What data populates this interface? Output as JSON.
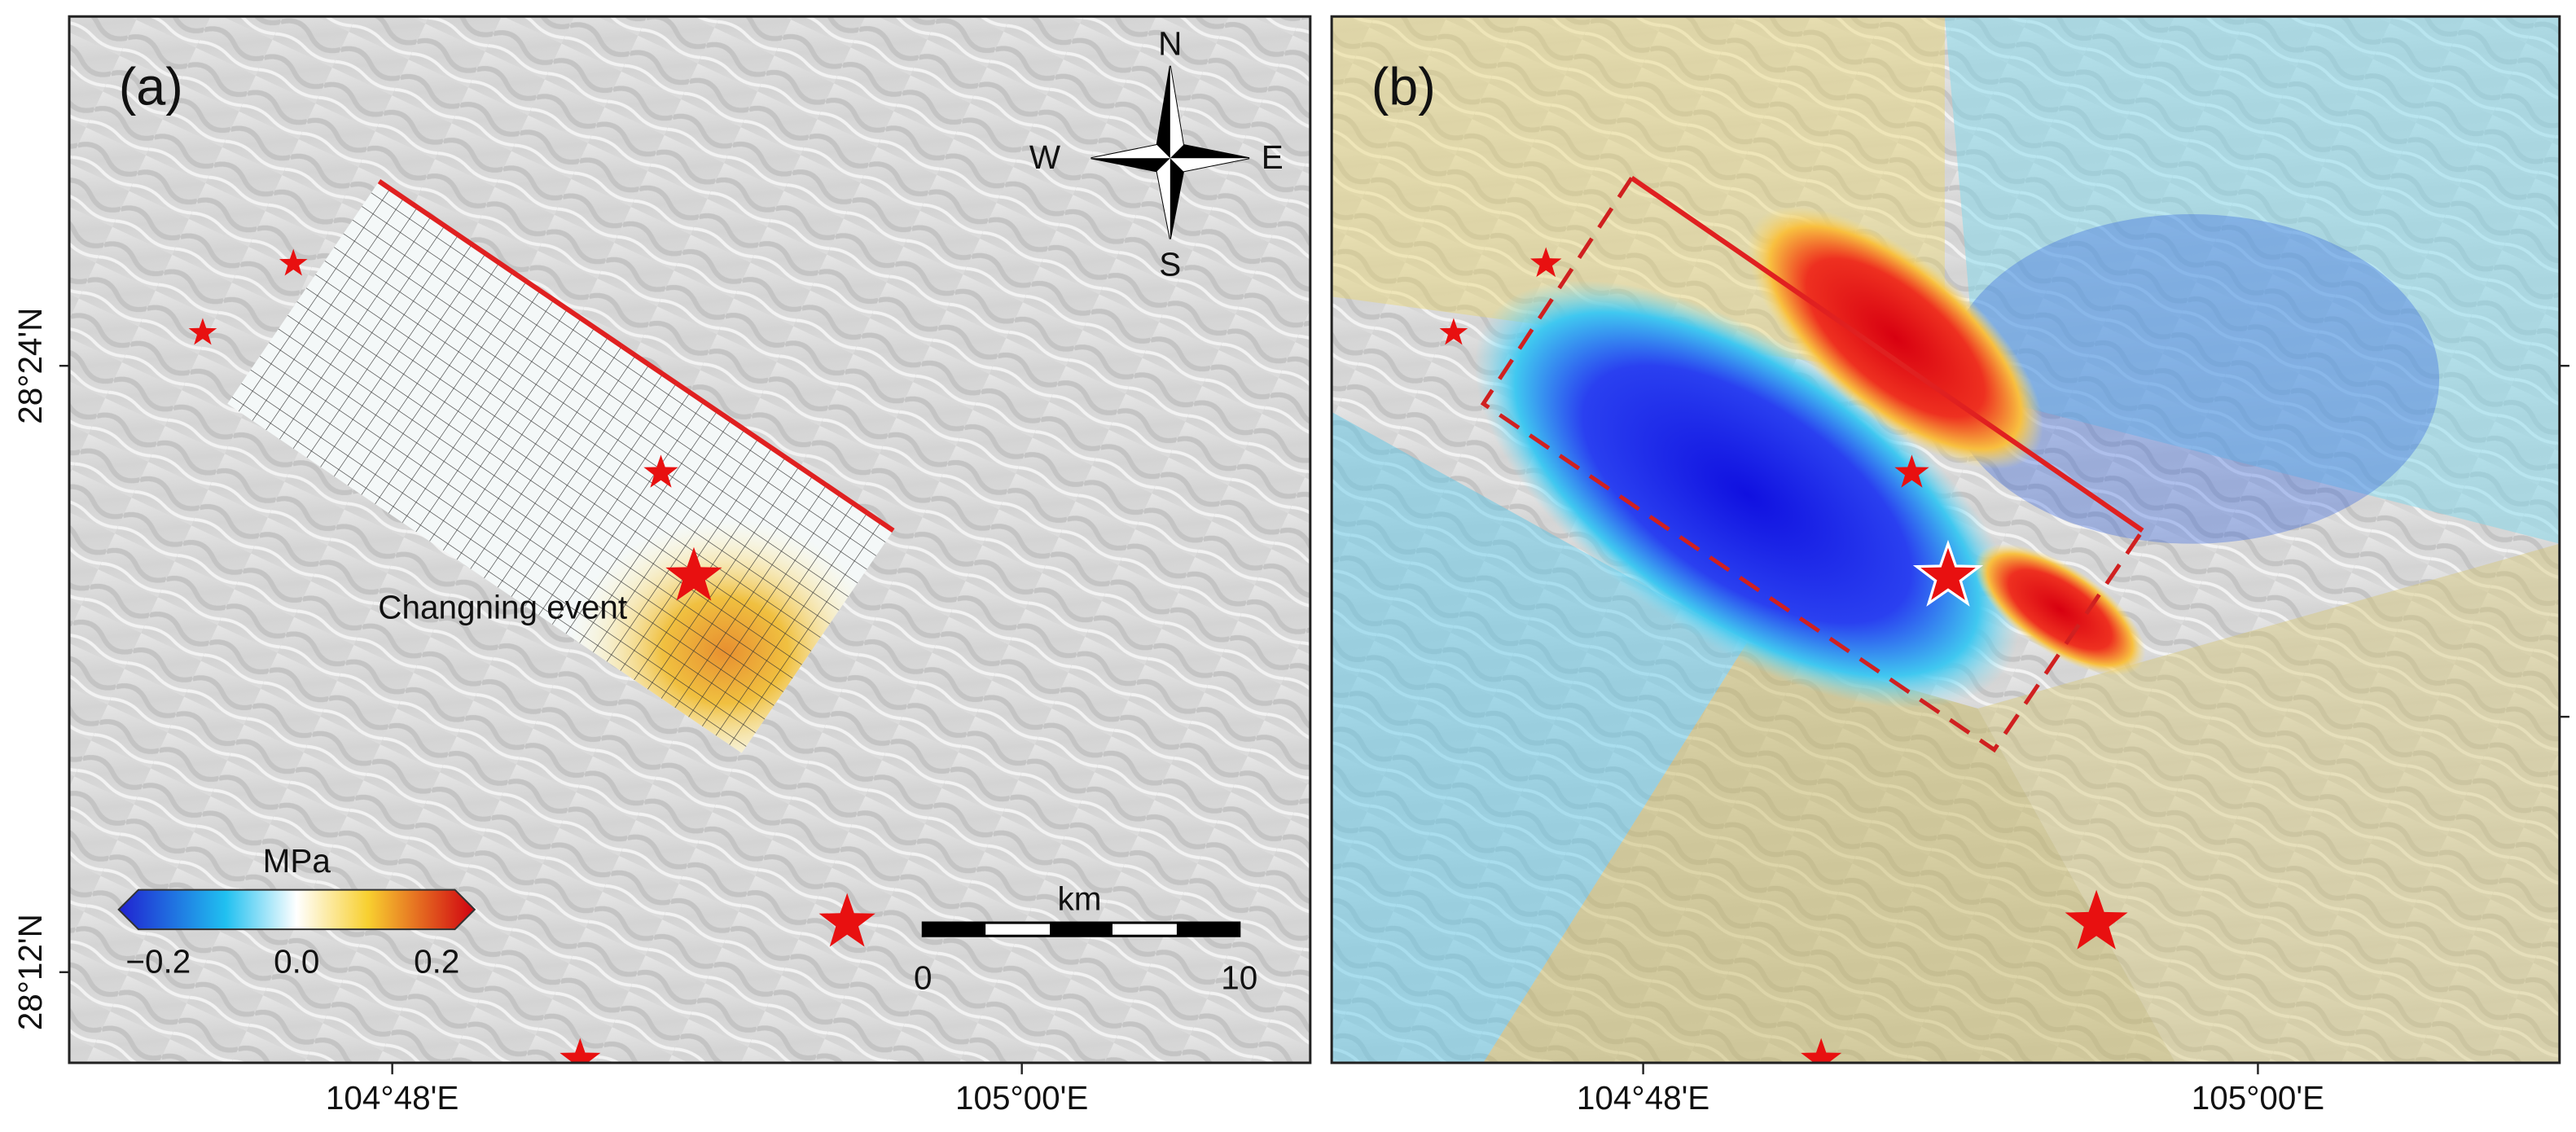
{
  "panels": [
    {
      "label": "(a)",
      "annotation": "Changning event"
    },
    {
      "label": "(b)"
    }
  ],
  "compass": {
    "n": "N",
    "s": "S",
    "w": "W",
    "e": "E"
  },
  "colorbar": {
    "unit": "MPa",
    "ticks": [
      "−0.2",
      "0.0",
      "0.2"
    ]
  },
  "scale_bar": {
    "unit": "km",
    "ticks": [
      "0",
      "10"
    ]
  },
  "y_axis": {
    "ticks": [
      "28°24'N",
      "28°12'N"
    ]
  },
  "x_axis": {
    "ticks": [
      "104°48'E",
      "105°00'E"
    ]
  }
}
